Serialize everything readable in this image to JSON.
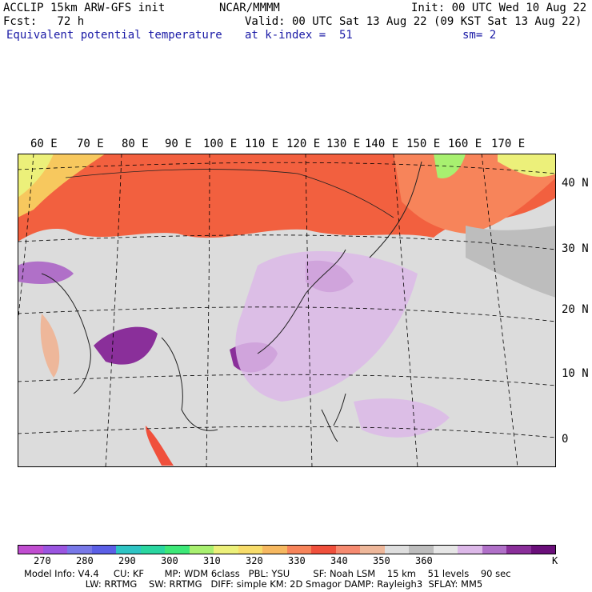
{
  "header": {
    "model_title": "ACCLIP 15km ARW-GFS init",
    "org": "NCAR/MMMM",
    "init": "Init: 00 UTC Wed 10 Aug 22",
    "fcst": "Fcst:   72 h",
    "valid": "Valid: 00 UTC Sat 13 Aug 22 (09 KST Sat 13 Aug 22)",
    "field": "Equivalent potential temperature",
    "level": "at k-index =  51",
    "smooth": "sm= 2"
  },
  "lon_labels": [
    "60 E",
    "70 E",
    "80 E",
    "90 E",
    "100 E",
    "110 E",
    "120 E",
    "130 E",
    "140 E",
    "150 E",
    "160 E",
    "170 E"
  ],
  "lat_labels": [
    "40 N",
    "30 N",
    "20 N",
    "10 N",
    "0"
  ],
  "colorbar": {
    "colors": [
      "#c04dd0",
      "#9a55e0",
      "#7878e8",
      "#5b5fe6",
      "#2ec4c4",
      "#2ad6a0",
      "#3de878",
      "#a8f070",
      "#ecf07a",
      "#f7dc6a",
      "#f6b860",
      "#f7845a",
      "#f0503c",
      "#f68a70",
      "#eeb79a",
      "#dedede",
      "#bdbdbd",
      "#e6e6e6",
      "#dcb8e8",
      "#b070c8",
      "#8a2f9a",
      "#6a0f7a"
    ],
    "ticks": [
      "270",
      "280",
      "290",
      "300",
      "310",
      "320",
      "330",
      "340",
      "350",
      "360"
    ],
    "unit": "K"
  },
  "footer": {
    "line1": "Model Info: V4.4     CU: KF       MP: WDM 6class   PBL: YSU        SF: Noah LSM    15 km    51 levels    90 sec",
    "line2": "                     LW: RRTMG    SW: RRTMG   DIFF: simple KM: 2D Smagor DAMP: Rayleigh3  SFLAY: MM5"
  }
}
